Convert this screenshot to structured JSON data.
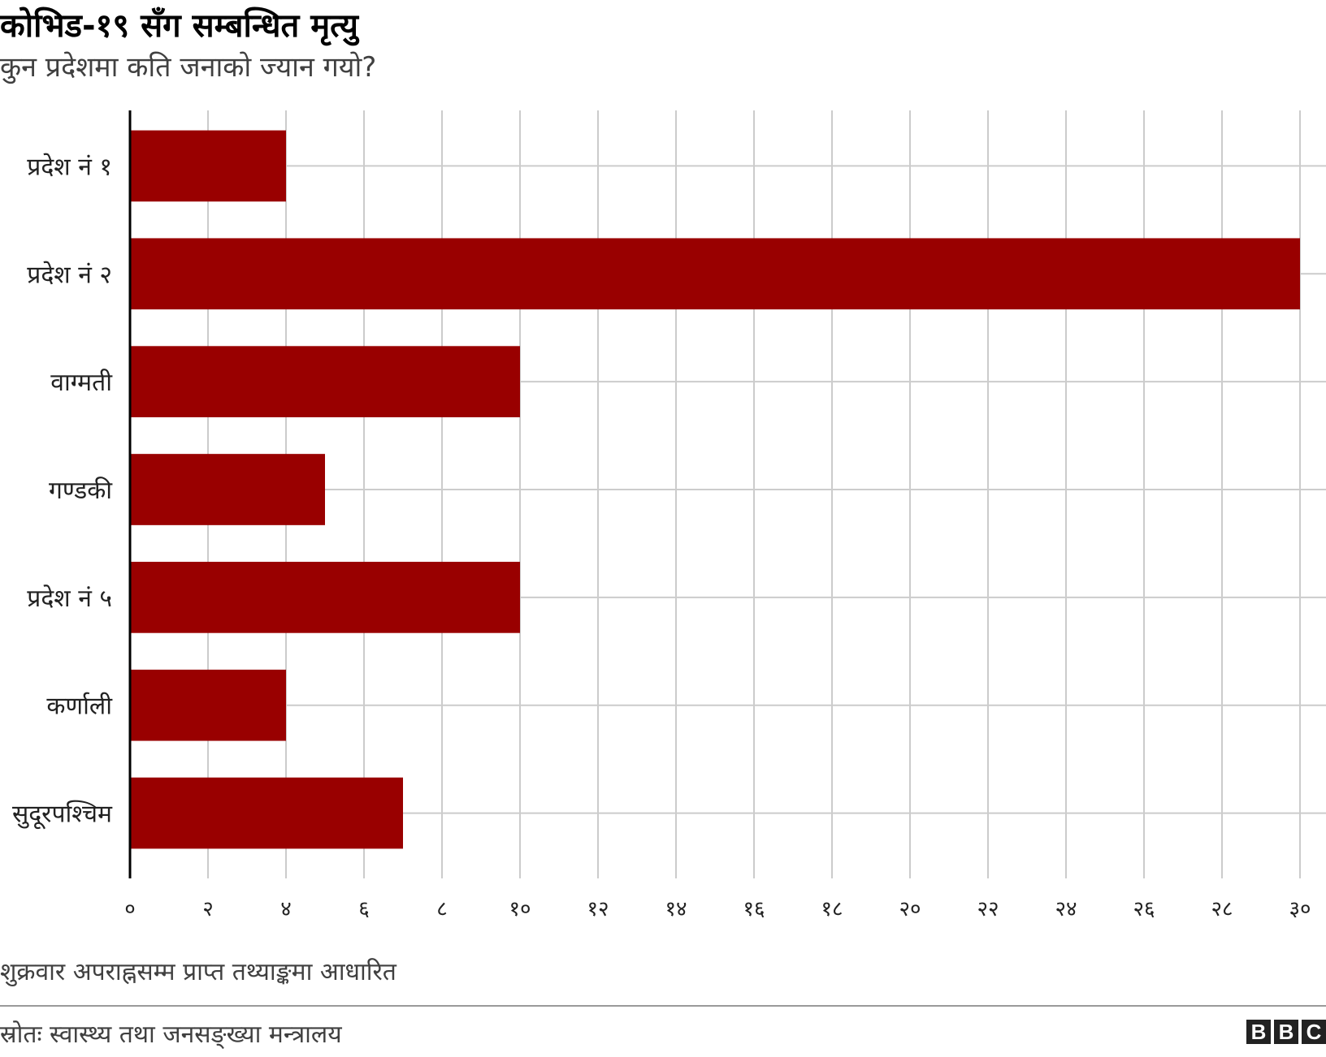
{
  "chart_data": {
    "type": "bar",
    "orientation": "horizontal",
    "title": "कोभिड-१९ सँग सम्बन्धित मृत्यु",
    "subtitle": "कुन प्रदेशमा कति जनाको ज्यान गयो?",
    "categories": [
      "प्रदेश नं १",
      "प्रदेश नं २",
      "वाग्मती",
      "गण्डकी",
      "प्रदेश नं ५",
      "कर्णाली",
      "सुदूरपश्चिम"
    ],
    "values": [
      4,
      30,
      10,
      5,
      10,
      4,
      7
    ],
    "xlim": [
      0,
      30
    ],
    "xticks": [
      0,
      2,
      4,
      6,
      8,
      10,
      12,
      14,
      16,
      18,
      20,
      22,
      24,
      26,
      28,
      30
    ],
    "xtick_labels": [
      "०",
      "२",
      "४",
      "६",
      "८",
      "१०",
      "१२",
      "१४",
      "१६",
      "१८",
      "२०",
      "२२",
      "२४",
      "२६",
      "२८",
      "३०"
    ],
    "bar_color": "#990000",
    "grid": true,
    "legend": "none"
  },
  "footer": {
    "note": "शुक्रवार अपराह्नसम्म प्राप्त तथ्याङ्कमा आधारित",
    "source": "स्रोतः स्वास्थ्य तथा जनसङ्ख्या मन्त्रालय",
    "logo_letters": [
      "B",
      "B",
      "C"
    ]
  }
}
